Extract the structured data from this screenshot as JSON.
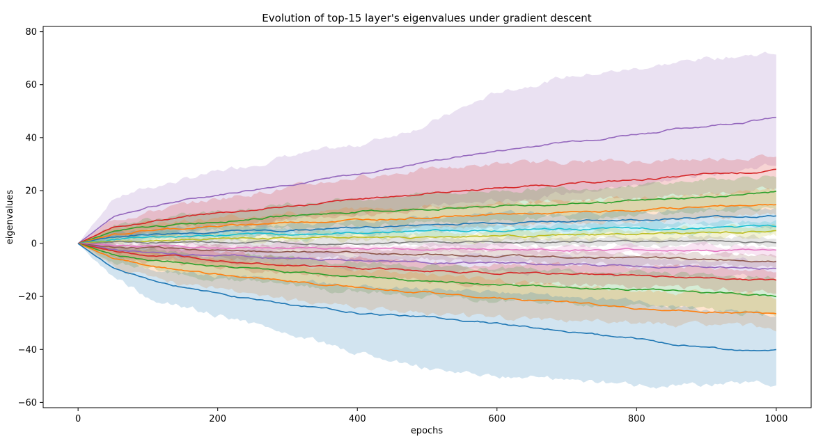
{
  "chart_data": {
    "type": "line",
    "title": "Evolution of top-15 layer's eigenvalues under gradient descent",
    "xlabel": "epochs",
    "ylabel": "eigenvalues",
    "xlim": [
      -50,
      1050
    ],
    "ylim": [
      -62,
      82
    ],
    "xticks": [
      0,
      200,
      400,
      600,
      800,
      1000
    ],
    "yticks": [
      -60,
      -40,
      -20,
      0,
      20,
      40,
      60,
      80
    ],
    "x": [
      0,
      50,
      100,
      200,
      300,
      400,
      500,
      600,
      700,
      800,
      900,
      1000
    ],
    "grid": false,
    "legend": "none",
    "shaded_band": "mean ± std",
    "series": [
      {
        "color": "#9467bd",
        "values": [
          0,
          10,
          14,
          18.5,
          22.5,
          26,
          31,
          35,
          38.5,
          41.5,
          44.5,
          47.5
        ],
        "lower": [
          0,
          2,
          3,
          6,
          9,
          11,
          14,
          16,
          19,
          22,
          26,
          30
        ],
        "upper": [
          0,
          17,
          21,
          27,
          33,
          37,
          45,
          57,
          63,
          66,
          70,
          72
        ]
      },
      {
        "color": "#d62728",
        "values": [
          0,
          6,
          8.5,
          11.5,
          14,
          16.5,
          19,
          21,
          22.5,
          24,
          26,
          27.5
        ],
        "lower": [
          0,
          3,
          5,
          7,
          9,
          11,
          13,
          14,
          16,
          17,
          19,
          21
        ],
        "upper": [
          0,
          9,
          12,
          17,
          21,
          25,
          28,
          30,
          31,
          31,
          32,
          33
        ]
      },
      {
        "color": "#2ca02c",
        "values": [
          0,
          4.5,
          6,
          8.5,
          10.5,
          12,
          13,
          14,
          15,
          16,
          17.5,
          19.5
        ],
        "lower": [
          0,
          2,
          3,
          5,
          6,
          7,
          8,
          9,
          10,
          11,
          12,
          14
        ],
        "upper": [
          0,
          7,
          9,
          12,
          15,
          17,
          19,
          20,
          21,
          22,
          24,
          26
        ]
      },
      {
        "color": "#ff7f0e",
        "values": [
          0,
          3.5,
          5,
          6.5,
          8,
          9,
          10,
          11,
          11.5,
          12.5,
          14,
          15
        ],
        "lower": [
          0,
          1.5,
          2.5,
          3.5,
          4.5,
          5.5,
          6.5,
          7,
          7.5,
          8.5,
          9.5,
          10.5
        ],
        "upper": [
          0,
          5.5,
          7.5,
          9.5,
          11.5,
          13,
          14,
          15.5,
          16,
          17,
          18.5,
          20
        ]
      },
      {
        "color": "#1f77b4",
        "values": [
          0,
          2.5,
          3.5,
          4.5,
          5,
          6,
          7,
          8,
          8.5,
          9,
          10,
          10.5
        ],
        "lower": [
          0,
          1,
          2,
          2.5,
          3,
          3.5,
          4.5,
          5,
          5.5,
          6,
          6.5,
          7
        ],
        "upper": [
          0,
          4,
          5,
          6.5,
          7,
          8.5,
          9.5,
          11,
          11.5,
          12,
          13,
          14
        ]
      },
      {
        "color": "#17becf",
        "values": [
          0,
          1.5,
          2.5,
          3,
          3.5,
          4,
          5,
          5,
          5.5,
          5.5,
          6,
          6.5
        ],
        "lower": [
          0,
          0.5,
          1,
          1.5,
          2,
          2.5,
          3,
          3,
          3.5,
          3.5,
          4,
          4.5
        ],
        "upper": [
          0,
          2.5,
          4,
          4.5,
          5,
          5.5,
          7,
          7,
          7.5,
          7.5,
          8,
          8.5
        ]
      },
      {
        "color": "#bcbd22",
        "values": [
          0,
          1,
          1.5,
          2,
          2,
          2.5,
          2.5,
          3,
          3,
          3.5,
          4,
          4.5
        ],
        "lower": [
          0,
          0,
          0.5,
          0.5,
          0.5,
          1,
          1,
          1,
          1.5,
          1.5,
          2,
          2.5
        ],
        "upper": [
          0,
          2,
          2.5,
          3.5,
          3.5,
          4,
          4,
          5,
          4.5,
          5.5,
          6,
          6.5
        ]
      },
      {
        "color": "#7f7f7f",
        "values": [
          0,
          0.5,
          0.5,
          0.5,
          0.5,
          0.5,
          0.5,
          0.5,
          0.5,
          1,
          1,
          0.5
        ],
        "lower": [
          0,
          -0.5,
          -0.5,
          -1,
          -1,
          -1,
          -1,
          -1,
          -1,
          -0.5,
          -0.5,
          -1
        ],
        "upper": [
          0,
          1.5,
          1.5,
          2,
          2,
          2,
          2,
          2,
          2,
          2.5,
          2.5,
          2
        ]
      },
      {
        "color": "#e377c2",
        "values": [
          0,
          -0.5,
          -1,
          -1.5,
          -1.5,
          -2,
          -2,
          -2,
          -2.5,
          -2.5,
          -2.5,
          -2.5
        ],
        "lower": [
          0,
          -1.5,
          -2,
          -3,
          -3,
          -3.5,
          -3.5,
          -3.5,
          -4,
          -4,
          -4,
          -4
        ],
        "upper": [
          0,
          0.5,
          0,
          0,
          0,
          -0.5,
          -0.5,
          -0.5,
          -1,
          -1,
          -1,
          -1
        ]
      },
      {
        "color": "#8c564b",
        "values": [
          0,
          -1.5,
          -2,
          -2.5,
          -3,
          -3.5,
          -4,
          -4.5,
          -5,
          -5.5,
          -6,
          -6.5
        ],
        "lower": [
          0,
          -3,
          -4,
          -5,
          -5.5,
          -6,
          -6.5,
          -7,
          -7.5,
          -8,
          -8.5,
          -9
        ],
        "upper": [
          0,
          0,
          -0.5,
          -0.5,
          -1,
          -1.5,
          -2,
          -2.5,
          -3,
          -3.5,
          -4,
          -4.5
        ]
      },
      {
        "color": "#9467bd",
        "values": [
          0,
          -2,
          -3.5,
          -4.5,
          -5.5,
          -6.5,
          -7,
          -7.5,
          -8,
          -8.5,
          -9,
          -9.5
        ],
        "lower": [
          0,
          -4,
          -6,
          -7,
          -8,
          -9,
          -10,
          -11,
          -11,
          -12,
          -12,
          -13
        ],
        "upper": [
          0,
          -0.5,
          -1.5,
          -2,
          -3,
          -4,
          -4.5,
          -5,
          -5,
          -5.5,
          -6,
          -6.5
        ]
      },
      {
        "color": "#d62728",
        "values": [
          0,
          -3,
          -4.5,
          -6,
          -8,
          -9.5,
          -10.5,
          -11,
          -11.5,
          -12,
          -13,
          -14
        ],
        "lower": [
          0,
          -5,
          -7,
          -9,
          -11,
          -13,
          -14,
          -15,
          -15.5,
          -16,
          -17,
          -18
        ],
        "upper": [
          0,
          -1,
          -2,
          -3,
          -5,
          -6,
          -7,
          -7.5,
          -8,
          -8.5,
          -9,
          -10
        ]
      },
      {
        "color": "#2ca02c",
        "values": [
          0,
          -4,
          -6,
          -8.5,
          -10.5,
          -12.5,
          -14,
          -15.5,
          -16.5,
          -17.5,
          -18.5,
          -20
        ],
        "lower": [
          0,
          -7,
          -10,
          -13,
          -16,
          -18,
          -20,
          -22,
          -23,
          -24,
          -25,
          -27
        ],
        "upper": [
          0,
          -1,
          -2.5,
          -4,
          -5.5,
          -7,
          -8.5,
          -9.5,
          -10.5,
          -11,
          -12,
          -13
        ]
      },
      {
        "color": "#ff7f0e",
        "values": [
          0,
          -5.5,
          -8.5,
          -11.5,
          -14,
          -16.5,
          -18.5,
          -20.5,
          -22.5,
          -24.5,
          -25.5,
          -26.5
        ],
        "lower": [
          0,
          -9,
          -13,
          -17,
          -21,
          -24,
          -27,
          -28,
          -29,
          -30,
          -31,
          -32
        ],
        "upper": [
          0,
          -2,
          -4,
          -6,
          -8,
          -10,
          -12,
          -14,
          -16,
          -18,
          -19,
          -20
        ]
      },
      {
        "color": "#1f77b4",
        "values": [
          0,
          -9,
          -14,
          -19,
          -23,
          -26,
          -28,
          -30,
          -33,
          -36,
          -39.5,
          -40.5
        ],
        "lower": [
          0,
          -13,
          -20,
          -27,
          -34,
          -41,
          -47,
          -50,
          -51,
          -54,
          -53,
          -53
        ],
        "upper": [
          0,
          -5,
          -9,
          -12,
          -14,
          -16,
          -17,
          -18,
          -20,
          -22,
          -25,
          -27
        ]
      }
    ]
  }
}
